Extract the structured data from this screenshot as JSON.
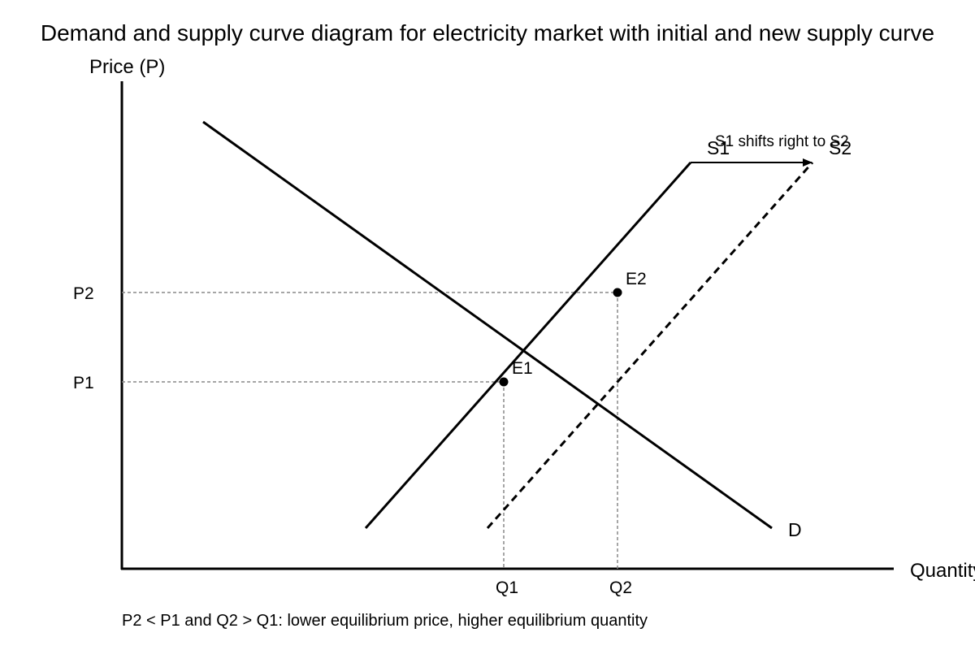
{
  "title": "Demand and supply curve diagram for electricity market with initial and new supply curve",
  "axes": {
    "y_label": "Price (P)",
    "x_label": "Quantity"
  },
  "ticks": {
    "p2": "P2",
    "p1": "P1",
    "q1": "Q1",
    "q2": "Q2"
  },
  "curves": {
    "demand": "D",
    "supply_initial": "S1",
    "supply_new": "S2"
  },
  "points": {
    "e1": "E1",
    "e2": "E2"
  },
  "shift_note": "S1 shifts right to S2",
  "caption": "P2 < P1 and Q2 > Q1: lower equilibrium price, higher equilibrium quantity"
}
